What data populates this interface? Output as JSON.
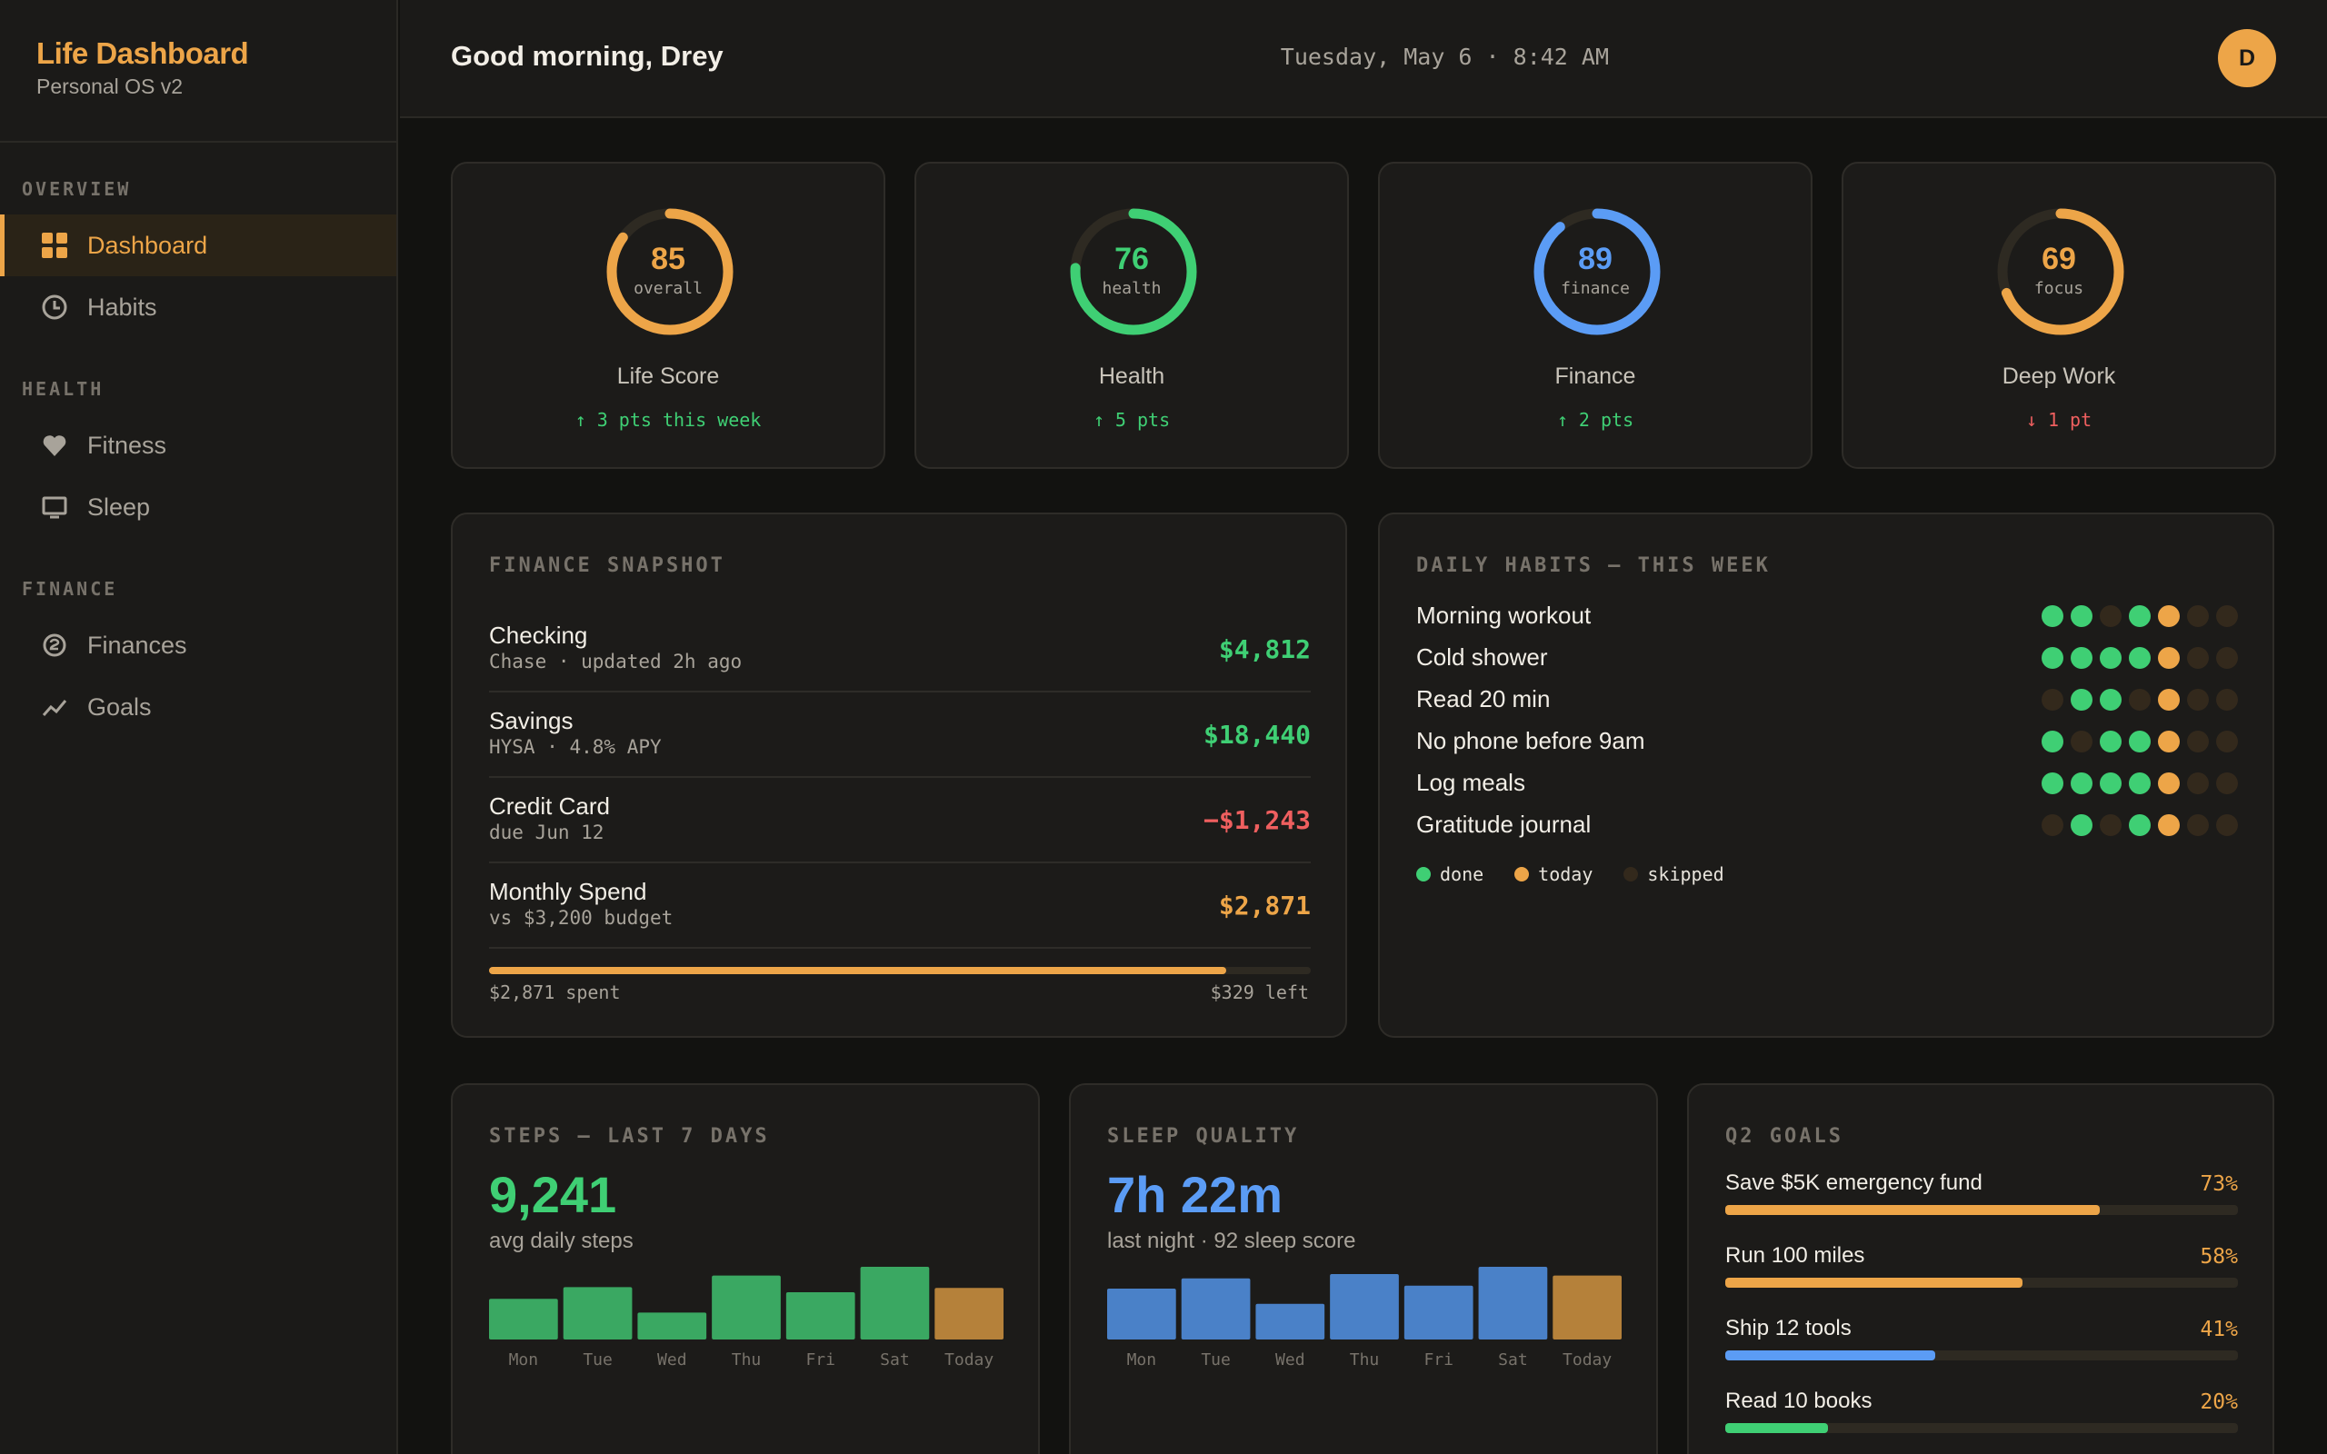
{
  "sidebar": {
    "title": "Life Dashboard",
    "subtitle": "Personal OS v2",
    "sections": {
      "overview": "OVERVIEW",
      "health": "HEALTH",
      "finance": "FINANCE"
    },
    "items": {
      "dashboard": "Dashboard",
      "habits": "Habits",
      "fitness": "Fitness",
      "sleep": "Sleep",
      "finances": "Finances",
      "goals": "Goals"
    }
  },
  "header": {
    "greeting": "Good morning, Drey",
    "datetime": "Tuesday, May 6 · 8:42 AM",
    "avatar_initial": "D"
  },
  "scores": [
    {
      "value": "85",
      "ring_label": "overall",
      "name": "Life Score",
      "delta": "↑ 3 pts this week",
      "progress": 0.85,
      "color": "#eda548",
      "delta_color": "#3fcf74"
    },
    {
      "value": "76",
      "ring_label": "health",
      "name": "Health",
      "delta": "↑ 5 pts",
      "progress": 0.76,
      "color": "#3fcf74",
      "delta_color": "#3fcf74"
    },
    {
      "value": "89",
      "ring_label": "finance",
      "name": "Finance",
      "delta": "↑ 2 pts",
      "progress": 0.89,
      "color": "#5b9cf5",
      "delta_color": "#3fcf74"
    },
    {
      "value": "69",
      "ring_label": "focus",
      "name": "Deep Work",
      "delta": "↓ 1 pt",
      "progress": 0.69,
      "color": "#eda548",
      "delta_color": "#ef5f5f"
    }
  ],
  "finance": {
    "title": "FINANCE SNAPSHOT",
    "rows": [
      {
        "name": "Checking",
        "sub": "Chase · updated 2h ago",
        "amount": "$4,812",
        "color": "#3fcf74"
      },
      {
        "name": "Savings",
        "sub": "HYSA · 4.8% APY",
        "amount": "$18,440",
        "color": "#3fcf74"
      },
      {
        "name": "Credit Card",
        "sub": "due Jun 12",
        "amount": "−$1,243",
        "color": "#ef5f5f"
      },
      {
        "name": "Monthly Spend",
        "sub": "vs $3,200 budget",
        "amount": "$2,871",
        "color": "#eda548"
      }
    ],
    "budget_progress": 0.897,
    "spent_label": "$2,871 spent",
    "left_label": "$329 left"
  },
  "habits": {
    "title": "DAILY HABITS — THIS WEEK",
    "rows": [
      {
        "name": "Morning workout",
        "days": [
          "done",
          "done",
          "skipped",
          "done",
          "today",
          "skipped",
          "skipped"
        ]
      },
      {
        "name": "Cold shower",
        "days": [
          "done",
          "done",
          "done",
          "done",
          "today",
          "skipped",
          "skipped"
        ]
      },
      {
        "name": "Read 20 min",
        "days": [
          "skipped",
          "done",
          "done",
          "skipped",
          "today",
          "skipped",
          "skipped"
        ]
      },
      {
        "name": "No phone before 9am",
        "days": [
          "done",
          "skipped",
          "done",
          "done",
          "today",
          "skipped",
          "skipped"
        ]
      },
      {
        "name": "Log meals",
        "days": [
          "done",
          "done",
          "done",
          "done",
          "today",
          "skipped",
          "skipped"
        ]
      },
      {
        "name": "Gratitude journal",
        "days": [
          "skipped",
          "done",
          "skipped",
          "done",
          "today",
          "skipped",
          "skipped"
        ]
      }
    ],
    "legend": {
      "done": "done",
      "today": "today",
      "skipped": "skipped"
    },
    "colors": {
      "done": "#3fcf74",
      "today": "#eda548",
      "skipped": "#33291c"
    }
  },
  "steps": {
    "title": "STEPS — LAST 7 DAYS",
    "big_value": "9,241",
    "caption": "avg daily steps",
    "chart_data": {
      "type": "bar",
      "categories": [
        "Mon",
        "Tue",
        "Wed",
        "Thu",
        "Fri",
        "Sat",
        "Today"
      ],
      "values": [
        0.56,
        0.72,
        0.37,
        0.88,
        0.65,
        1.0,
        0.71
      ],
      "color": "#3aa862",
      "today_color": "#b5813a"
    }
  },
  "sleep": {
    "title": "SLEEP QUALITY",
    "big_value": "7h 22m",
    "caption": "last night · 92 sleep score",
    "chart_data": {
      "type": "bar",
      "categories": [
        "Mon",
        "Tue",
        "Wed",
        "Thu",
        "Fri",
        "Sat",
        "Today"
      ],
      "values": [
        0.7,
        0.84,
        0.49,
        0.9,
        0.74,
        1.0,
        0.88
      ],
      "color": "#4a81c8",
      "today_color": "#b5813a"
    }
  },
  "goals": {
    "title": "Q2 GOALS",
    "items": [
      {
        "name": "Save $5K emergency fund",
        "pct": "73%",
        "progress": 0.73,
        "color": "#eda548"
      },
      {
        "name": "Run 100 miles",
        "pct": "58%",
        "progress": 0.58,
        "color": "#eda548"
      },
      {
        "name": "Ship 12 tools",
        "pct": "41%",
        "progress": 0.41,
        "color": "#5b9cf5"
      },
      {
        "name": "Read 10 books",
        "pct": "20%",
        "progress": 0.2,
        "color": "#3fcf74"
      }
    ]
  }
}
